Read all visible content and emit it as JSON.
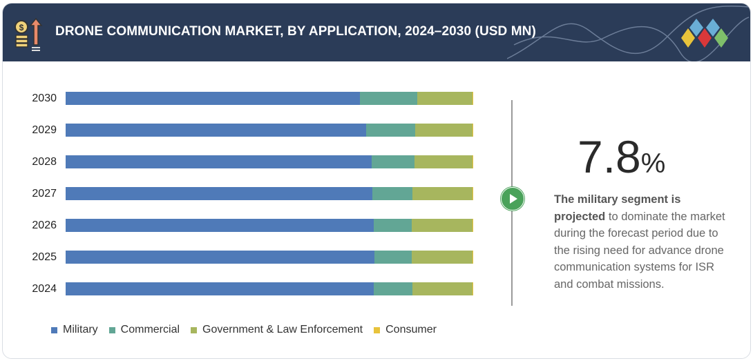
{
  "header": {
    "title": "DRONE COMMUNICATION MARKET, BY APPLICATION, 2024–2030 (USD MN)",
    "icon": "coins-growth-arrow-icon",
    "logo": "diamond-cluster-logo"
  },
  "colors": {
    "header_bg": "#2b3c58",
    "Military": "#4f7ab8",
    "Commercial": "#62a695",
    "Government & Law Enforcement": "#a7b65e",
    "Consumer": "#e8c33b",
    "accent": "#4aa25a"
  },
  "chart_data": {
    "type": "bar",
    "orientation": "horizontal",
    "stacked": "100%",
    "title": "DRONE COMMUNICATION MARKET, BY APPLICATION, 2024–2030 (USD MN)",
    "categories": [
      "2030",
      "2029",
      "2028",
      "2027",
      "2026",
      "2025",
      "2024"
    ],
    "series": [
      {
        "name": "Military",
        "values": [
          72.2,
          73.8,
          75.0,
          75.2,
          75.6,
          75.7,
          75.6
        ]
      },
      {
        "name": "Commercial",
        "values": [
          14.1,
          12.0,
          10.6,
          9.9,
          9.3,
          9.2,
          9.5
        ]
      },
      {
        "name": "Government & Law Enforcement",
        "values": [
          13.5,
          14.0,
          14.2,
          14.7,
          14.9,
          14.9,
          14.7
        ]
      },
      {
        "name": "Consumer",
        "values": [
          0.2,
          0.2,
          0.2,
          0.2,
          0.2,
          0.2,
          0.2
        ]
      }
    ],
    "legend_position": "bottom",
    "grid": false
  },
  "callout": {
    "value": "7.8",
    "unit": "%",
    "bold_text": "The military segment is projected",
    "text": " to dominate the market during the forecast period due to the rising need for advance drone communication systems for ISR and combat missions.",
    "icon": "play-icon"
  }
}
